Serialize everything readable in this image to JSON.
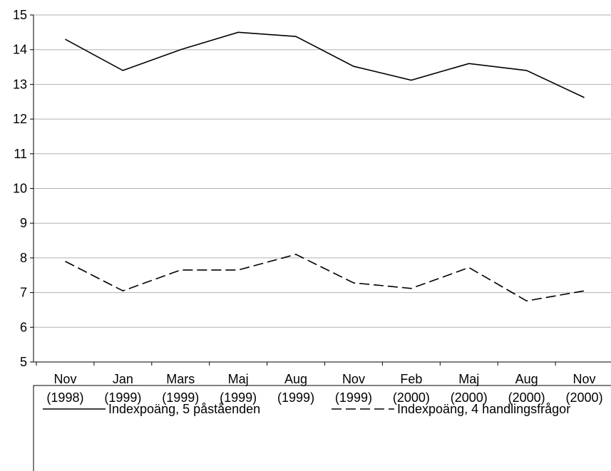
{
  "chart_data": {
    "type": "line",
    "categories": [
      [
        "Nov",
        "(1998)"
      ],
      [
        "Jan",
        "(1999)"
      ],
      [
        "Mars",
        "(1999)"
      ],
      [
        "Maj",
        "(1999)"
      ],
      [
        "Aug",
        "(1999)"
      ],
      [
        "Nov",
        "(1999)"
      ],
      [
        "Feb",
        "(2000)"
      ],
      [
        "Maj",
        "(2000)"
      ],
      [
        "Aug",
        "(2000)"
      ],
      [
        "Nov",
        "(2000)"
      ]
    ],
    "series": [
      {
        "name": "Indexpoäng, 5 påståenden",
        "color": "#000000",
        "dash": "solid",
        "values": [
          14.3,
          13.4,
          14.0,
          14.5,
          14.38,
          13.52,
          13.12,
          13.6,
          13.4,
          12.62
        ]
      },
      {
        "name": "Indexpoäng, 4 handlingsfrågor",
        "color": "#000000",
        "dash": "dashed",
        "values": [
          7.9,
          7.05,
          7.65,
          7.65,
          8.1,
          7.28,
          7.12,
          7.72,
          6.76,
          7.05
        ]
      }
    ],
    "ylim": [
      5,
      15
    ],
    "yticks": [
      5,
      6,
      7,
      8,
      9,
      10,
      11,
      12,
      13,
      14,
      15
    ],
    "grid": true,
    "legend": "bottom"
  }
}
